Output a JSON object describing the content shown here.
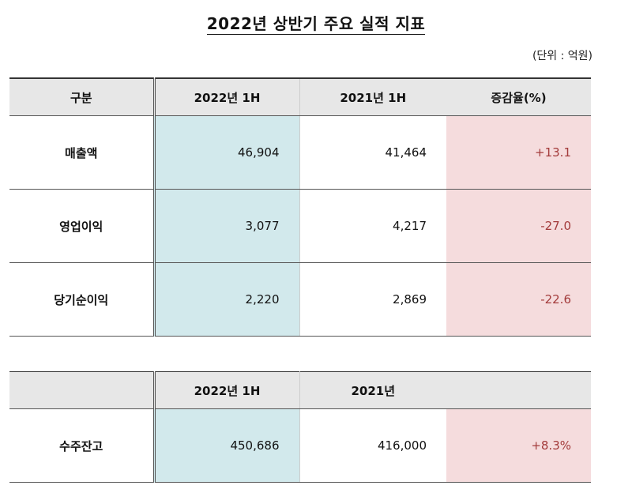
{
  "title": "2022년 상반기 주요 실적 지표",
  "unit": "(단위 : 억원)",
  "table1": {
    "headers": [
      "구분",
      "2022년 1H",
      "2021년 1H",
      "증감율(%)"
    ],
    "rows": [
      {
        "label": "매출액",
        "v2022": "46,904",
        "v2021": "41,464",
        "change": "+13.1"
      },
      {
        "label": "영업이익",
        "v2022": "3,077",
        "v2021": "4,217",
        "change": "-27.0"
      },
      {
        "label": "당기순이익",
        "v2022": "2,220",
        "v2021": "2,869",
        "change": "-22.6"
      }
    ]
  },
  "table2": {
    "headers": [
      "",
      "2022년 1H",
      "2021년",
      ""
    ],
    "rows": [
      {
        "label": "수주잔고",
        "v2022": "450,686",
        "v2021": "416,000",
        "change": "+8.3%"
      }
    ]
  },
  "colors": {
    "header_bg": "#e7e7e7",
    "current_year_bg": "#d2e9ec",
    "change_bg": "#f5dcdd",
    "change_text": "#a33b3b"
  }
}
